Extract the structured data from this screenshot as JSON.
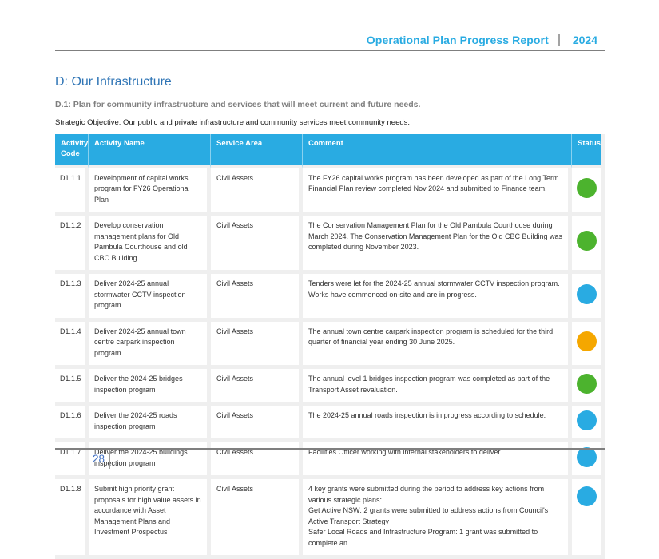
{
  "header": {
    "title": "Operational Plan Progress Report",
    "year": "2024"
  },
  "section": {
    "heading": "D: Our Infrastructure",
    "subheading": "D.1: Plan for community infrastructure and services that will meet current and future needs.",
    "objective": "Strategic Objective: Our public and private infrastructure and community services meet community needs."
  },
  "colors": {
    "accent_cyan": "#29ABE2",
    "heading_blue": "#2E74B5",
    "status_green": "#4CB32E",
    "status_blue": "#29ABE2",
    "status_amber": "#F5A700",
    "page_number_blue": "#4472C4"
  },
  "table": {
    "columns": [
      "Activity Code",
      "Activity Name",
      "Service Area",
      "Comment",
      "Status"
    ],
    "rows": [
      {
        "code": "D1.1.1",
        "name": "Development of capital works program for FY26 Operational Plan",
        "service_area": "Civil Assets",
        "comment": "The FY26 capital works program has been developed as part of the Long Term Financial Plan review completed Nov 2024 and submitted to Finance team.",
        "status": "green",
        "status_color": "#4CB32E"
      },
      {
        "code": "D1.1.2",
        "name": "Develop conservation management plans for Old Pambula Courthouse and old CBC Building",
        "service_area": "Civil Assets",
        "comment": "The Conservation Management Plan for the Old Pambula Courthouse during March 2024. The Conservation Management Plan for the Old CBC Building was completed during November 2023.",
        "status": "green",
        "status_color": "#4CB32E"
      },
      {
        "code": "D1.1.3",
        "name": "Deliver 2024-25 annual stormwater CCTV inspection program",
        "service_area": "Civil Assets",
        "comment": "Tenders were let for the 2024-25 annual stormwater CCTV inspection program.  Works have commenced on-site and are in progress.",
        "status": "blue",
        "status_color": "#29ABE2"
      },
      {
        "code": "D1.1.4",
        "name": "Deliver 2024-25 annual town centre carpark inspection program",
        "service_area": "Civil Assets",
        "comment": "The annual town centre carpark inspection program is scheduled for the third quarter of financial year ending 30 June 2025.",
        "status": "amber",
        "status_color": "#F5A700"
      },
      {
        "code": "D1.1.5",
        "name": "Deliver the 2024-25 bridges inspection program",
        "service_area": "Civil Assets",
        "comment": "The annual level 1 bridges inspection program was completed as part of the Transport Asset revaluation.",
        "status": "green",
        "status_color": "#4CB32E"
      },
      {
        "code": "D1.1.6",
        "name": "Deliver the 2024-25 roads inspection program",
        "service_area": "Civil Assets",
        "comment": "The 2024-25 annual roads inspection is in progress according to schedule.",
        "status": "blue",
        "status_color": "#29ABE2"
      },
      {
        "code": "D1.1.7",
        "name": "Deliver the 2024-25 buildings inspection program",
        "service_area": "Civil Assets",
        "comment": "Facilities Officer working with internal stakeholders to deliver",
        "status": "blue",
        "status_color": "#29ABE2"
      },
      {
        "code": "D1.1.8",
        "name": "Submit high priority grant proposals for high value assets in accordance with Asset Management Plans and Investment Prospectus",
        "service_area": "Civil Assets",
        "comment": "4 key grants were submitted during the period to address key actions from various strategic plans:\nGet Active NSW: 2 grants were submitted to address actions from Council's Active Transport Strategy\nSafer Local Roads and Infrastructure Program:  1 grant was submitted to complete an",
        "status": "blue",
        "status_color": "#29ABE2"
      }
    ]
  },
  "footer": {
    "page_number": "28"
  }
}
